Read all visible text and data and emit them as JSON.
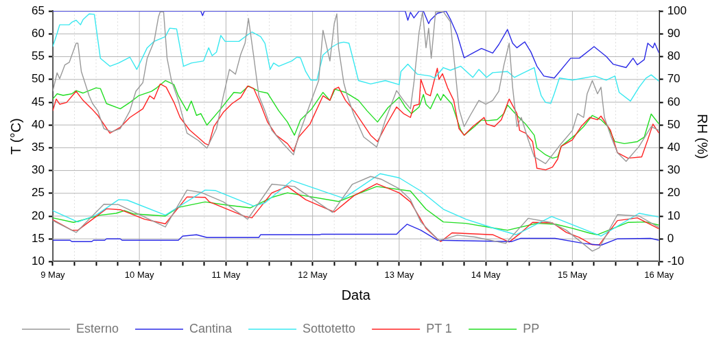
{
  "chart_data": {
    "type": "line",
    "xlabel": "Data",
    "ylabel": "T (°C)",
    "y2label": "RH (%)",
    "xlim": [
      "--05-09",
      "--05-16"
    ],
    "xticks": [
      {
        "value": "--05-09",
        "label": "9 May"
      },
      {
        "value": "--05-09T06:00",
        "label": null
      },
      {
        "value": "--05-09T12:00",
        "label": null
      },
      {
        "value": "--05-09T18:00",
        "label": null
      },
      {
        "value": "--05-10",
        "label": "10 May"
      },
      {
        "value": "--05-10T06:00",
        "label": null
      },
      {
        "value": "--05-10T12:00",
        "label": null
      },
      {
        "value": "--05-10T18:00",
        "label": null
      },
      {
        "value": "--05-11",
        "label": "11 May"
      },
      {
        "value": "--05-11T06:00",
        "label": null
      },
      {
        "value": "--05-11T12:00",
        "label": null
      },
      {
        "value": "--05-11T18:00",
        "label": null
      },
      {
        "value": "--05-12",
        "label": "12 May"
      },
      {
        "value": "--05-12T06:00",
        "label": null
      },
      {
        "value": "--05-12T12:00",
        "label": null
      },
      {
        "value": "--05-12T18:00",
        "label": null
      },
      {
        "value": "--05-13",
        "label": "13 May"
      },
      {
        "value": "--05-13T06:00",
        "label": null
      },
      {
        "value": "--05-13T12:00",
        "label": null
      },
      {
        "value": "--05-13T18:00",
        "label": null
      },
      {
        "value": "--05-14",
        "label": "14 May"
      },
      {
        "value": "--05-14T06:00",
        "label": null
      },
      {
        "value": "--05-14T12:00",
        "label": null
      },
      {
        "value": "--05-14T18:00",
        "label": null
      },
      {
        "value": "--05-15",
        "label": "15 May"
      },
      {
        "value": "--05-15T06:00",
        "label": null
      },
      {
        "value": "--05-15T12:00",
        "label": null
      },
      {
        "value": "--05-15T18:00",
        "label": null
      },
      {
        "value": "--05-16",
        "label": "16 May"
      }
    ],
    "ylim": [
      10,
      65
    ],
    "yticks": [
      10,
      15,
      20,
      25,
      30,
      35,
      40,
      45,
      50,
      55,
      60,
      65
    ],
    "y2lim": [
      -10,
      100
    ],
    "y2ticks": [
      -10,
      0,
      10,
      20,
      30,
      40,
      50,
      60,
      70,
      80,
      90,
      100
    ],
    "grid": true,
    "legend": "bottom",
    "marker": "none",
    "line_style": "solid",
    "series": [
      {
        "name": "Esterno",
        "color": "#999999",
        "x": [
          "--05-09T00:00",
          "--05-09T06:29",
          "--05-09T14:10",
          "--05-09T18:14",
          "--05-10T07:12",
          "--05-10T13:12",
          "--05-10T17:02",
          "--05-10T23:17",
          "--05-11T06:00",
          "--05-11T12:43",
          "--05-11T18:58",
          "--05-12T05:31",
          "--05-12T11:02",
          "--05-12T16:05",
          "--05-12T18:58",
          "--05-13T00:00",
          "--05-13T03:07",
          "--05-13T06:00",
          "--05-13T11:02",
          "--05-13T16:05",
          "--05-13T20:53",
          "--05-14T05:31",
          "--05-14T11:46",
          "--05-14T18:00",
          "--05-14T22:19",
          "--05-15T05:31",
          "--05-15T07:26",
          "--05-15T12:29",
          "--05-15T18:29",
          "--05-16T00:00"
        ],
        "values": [
          19.0,
          16.4,
          22.6,
          22.5,
          17.6,
          25.7,
          25.2,
          23.1,
          19.3,
          27.0,
          26.5,
          20.8,
          27.0,
          28.7,
          28.1,
          26.0,
          23.6,
          18.7,
          14.6,
          15.8,
          15.4,
          14.0,
          19.5,
          18.6,
          16.9,
          12.3,
          13.0,
          20.3,
          20.0,
          17.5
        ]
      },
      {
        "name": "Cantina",
        "color": "#2a2ae6",
        "x": [
          "--05-09T00:00",
          "--05-09T04:48",
          "--05-09T05:17",
          "--05-09T10:48",
          "--05-09T11:17",
          "--05-09T14:24",
          "--05-09T14:53",
          "--05-09T18:43",
          "--05-09T19:12",
          "--05-10T10:48",
          "--05-10T12:00",
          "--05-10T15:50",
          "--05-10T18:43",
          "--05-11T09:07",
          "--05-11T09:36",
          "--05-12T01:55",
          "--05-12T02:24",
          "--05-12T23:17",
          "--05-13T00:00",
          "--05-13T02:10",
          "--05-13T06:00",
          "--05-13T10:34",
          "--05-14T07:12",
          "--05-14T09:36",
          "--05-14T19:12",
          "--05-15T03:07",
          "--05-15T07:55",
          "--05-15T12:29",
          "--05-15T21:36",
          "--05-16T00:00"
        ],
        "values": [
          14.7,
          14.7,
          14.4,
          14.4,
          14.7,
          14.7,
          15.0,
          15.0,
          14.7,
          14.7,
          15.6,
          15.9,
          15.3,
          15.3,
          15.9,
          15.9,
          16.0,
          16.0,
          16.6,
          18.2,
          16.9,
          14.7,
          14.4,
          15.1,
          15.1,
          14.0,
          13.6,
          15.0,
          15.1,
          14.7
        ]
      },
      {
        "name": "Sottotetto",
        "color": "#38e8f0",
        "x": [
          "--05-09T00:00",
          "--05-09T06:58",
          "--05-09T12:00",
          "--05-09T18:14",
          "--05-09T20:38",
          "--05-10T07:12",
          "--05-10T18:14",
          "--05-10T21:07",
          "--05-11T07:41",
          "--05-11T10:48",
          "--05-11T18:14",
          "--05-12T08:38",
          "--05-12T18:43",
          "--05-13T00:00",
          "--05-13T06:00",
          "--05-13T12:14",
          "--05-13T18:29",
          "--05-14T01:55",
          "--05-14T08:24",
          "--05-14T18:14",
          "--05-15T07:55",
          "--05-15T18:29",
          "--05-16T00:00"
        ],
        "values": [
          21.2,
          18.7,
          20.2,
          23.6,
          23.5,
          20.2,
          25.7,
          25.6,
          22.2,
          22.9,
          27.8,
          23.9,
          29.3,
          28.4,
          25.5,
          21.5,
          19.3,
          17.4,
          15.9,
          19.9,
          15.6,
          20.6,
          19.8
        ]
      },
      {
        "name": "PT 1",
        "color": "#ff2222",
        "x": [
          "--05-09T00:00",
          "--05-09T05:17",
          "--05-09T06:58",
          "--05-09T14:53",
          "--05-09T18:43",
          "--05-10T01:26",
          "--05-10T07:12",
          "--05-10T13:12",
          "--05-10T18:14",
          "--05-10T19:26",
          "--05-11T05:17",
          "--05-11T07:12",
          "--05-11T12:43",
          "--05-11T17:02",
          "--05-11T22:05",
          "--05-12T06:00",
          "--05-12T11:31",
          "--05-12T17:46",
          "--05-13T00:00",
          "--05-13T03:07",
          "--05-13T07:26",
          "--05-13T10:34",
          "--05-13T11:31",
          "--05-13T14:38",
          "--05-14T01:55",
          "--05-14T06:29",
          "--05-14T09:22",
          "--05-14T12:58",
          "--05-14T18:29",
          "--05-14T22:19",
          "--05-15T01:55",
          "--05-15T05:31",
          "--05-15T07:26",
          "--05-15T12:29",
          "--05-15T18:00",
          "--05-16T00:00"
        ],
        "values": [
          19.2,
          16.9,
          16.9,
          21.6,
          21.4,
          19.3,
          18.3,
          24.2,
          24.1,
          23.1,
          19.9,
          19.6,
          25.1,
          26.5,
          23.6,
          20.9,
          24.5,
          27.1,
          25.1,
          23.1,
          17.3,
          15.0,
          14.4,
          16.3,
          15.9,
          14.3,
          16.1,
          18.6,
          18.5,
          16.4,
          15.3,
          13.7,
          13.7,
          19.0,
          19.6,
          17.2
        ]
      },
      {
        "name": "PP",
        "color": "#22dd22",
        "x": [
          "--05-09T00:00",
          "--05-09T05:46",
          "--05-09T13:12",
          "--05-09T17:31",
          "--05-09T19:55",
          "--05-09T22:19",
          "--05-10T07:12",
          "--05-10T10:48",
          "--05-10T18:14",
          "--05-11T00:14",
          "--05-11T06:43",
          "--05-11T12:43",
          "--05-11T17:02",
          "--05-12T07:12",
          "--05-12T17:46",
          "--05-13T03:07",
          "--05-13T07:26",
          "--05-13T12:14",
          "--05-13T18:29",
          "--05-14T01:55",
          "--05-14T06:00",
          "--05-14T14:10",
          "--05-14T19:26",
          "--05-15T00:00",
          "--05-15T05:02",
          "--05-15T06:58",
          "--05-15T15:22",
          "--05-15T20:24",
          "--05-16T00:00"
        ],
        "values": [
          19.6,
          18.6,
          20.2,
          20.6,
          21.2,
          20.5,
          20.0,
          21.9,
          23.1,
          22.4,
          21.8,
          24.1,
          25.1,
          23.2,
          26.5,
          25.5,
          21.5,
          18.7,
          18.4,
          17.4,
          16.9,
          18.4,
          18.2,
          17.3,
          16.2,
          15.9,
          18.6,
          18.7,
          18.0
        ]
      },
      {
        "color": "#999999",
        "axis": "y2",
        "x": [
          "--05-09T00:00",
          "--05-09T01:12",
          "--05-09T01:55",
          "--05-09T03:22",
          "--05-09T04:34",
          "--05-09T06:29",
          "--05-09T06:58",
          "--05-09T07:55",
          "--05-09T10:05",
          "--05-09T11:02",
          "--05-09T12:29",
          "--05-09T14:10",
          "--05-09T16:19",
          "--05-09T18:43",
          "--05-09T21:22",
          "--05-09T23:02",
          "--05-10T00:58",
          "--05-10T02:10",
          "--05-10T04:05",
          "--05-10T05:17",
          "--05-10T05:46",
          "--05-10T06:43",
          "--05-10T07:41",
          "--05-10T08:53",
          "--05-10T10:48",
          "--05-10T13:12",
          "--05-10T16:19",
          "--05-10T18:43",
          "--05-10T21:22",
          "--05-10T23:17",
          "--05-11T00:58",
          "--05-11T02:38",
          "--05-11T04:05",
          "--05-11T05:17",
          "--05-11T06:14",
          "--05-11T07:41",
          "--05-11T09:07",
          "--05-11T10:48",
          "--05-11T12:43",
          "--05-11T15:50",
          "--05-11T18:43",
          "--05-11T20:10",
          "--05-11T23:17",
          "--05-12T01:41",
          "--05-12T02:53",
          "--05-12T04:48",
          "--05-12T06:00",
          "--05-12T06:43",
          "--05-12T07:12",
          "--05-12T08:38",
          "--05-12T09:36",
          "--05-12T11:31",
          "--05-12T14:10",
          "--05-12T17:46",
          "--05-12T20:10",
          "--05-12T23:17",
          "--05-13T01:12",
          "--05-13T03:07",
          "--05-13T04:05",
          "--05-13T05:31",
          "--05-13T06:29",
          "--05-13T07:26",
          "--05-13T08:10",
          "--05-13T08:53",
          "--05-13T10:05",
          "--05-13T12:14",
          "--05-13T14:10",
          "--05-13T15:22",
          "--05-13T16:34",
          "--05-13T18:00",
          "--05-13T19:41",
          "--05-13T22:05",
          "--05-14T00:00",
          "--05-14T01:55",
          "--05-14T03:36",
          "--05-14T05:02",
          "--05-14T06:29",
          "--05-14T07:26",
          "--05-14T08:38",
          "--05-14T09:50",
          "--05-14T11:46",
          "--05-14T13:26",
          "--05-14T16:34",
          "--05-14T20:53",
          "--05-15T00:00",
          "--05-15T01:26",
          "--05-15T03:07",
          "--05-15T04:05",
          "--05-15T05:31",
          "--05-15T06:58",
          "--05-15T07:55",
          "--05-15T08:53",
          "--05-15T10:34",
          "--05-15T12:29",
          "--05-15T14:53",
          "--05-15T18:29",
          "--05-15T21:50",
          "--05-16T00:00"
        ],
        "values": [
          64.8,
          72.9,
          70.3,
          76.4,
          77.5,
          85.9,
          85.9,
          73.5,
          62.8,
          59.4,
          56.2,
          48.4,
          47.0,
          48.4,
          56.2,
          64.8,
          68.6,
          79.3,
          86.7,
          97.4,
          99.7,
          99.7,
          79.3,
          69.5,
          60.8,
          46.4,
          43.2,
          39.8,
          48.4,
          62.8,
          74.4,
          72.3,
          81.0,
          85.9,
          96.8,
          80.1,
          62.8,
          56.2,
          47.6,
          41.8,
          36.9,
          45.5,
          59.1,
          69.5,
          91.6,
          78.1,
          94.5,
          98.8,
          83.9,
          68.6,
          62.8,
          54.2,
          44.7,
          40.3,
          52.2,
          65.1,
          60.8,
          57.1,
          68.6,
          90.8,
          99.7,
          83.9,
          92.5,
          79.3,
          99.7,
          99.7,
          95.4,
          76.4,
          57.1,
          49.3,
          54.2,
          60.8,
          59.1,
          60.8,
          64.8,
          76.4,
          85.9,
          66.6,
          49.3,
          53.3,
          43.5,
          36.0,
          33.0,
          41.8,
          47.6,
          55.0,
          53.3,
          63.7,
          69.5,
          63.7,
          66.6,
          53.3,
          45.5,
          37.8,
          34.0,
          40.6,
          49.3,
          47.6
        ]
      },
      {
        "color": "#2a2ae6",
        "axis": "y2",
        "x": [
          "--05-09T00:00",
          "--05-10T17:02",
          "--05-10T17:31",
          "--05-10T18:00",
          "--05-13T01:41",
          "--05-13T02:24",
          "--05-13T03:07",
          "--05-13T04:05",
          "--05-13T05:31",
          "--05-13T06:43",
          "--05-13T08:10",
          "--05-13T08:38",
          "--05-13T10:34",
          "--05-13T12:58",
          "--05-13T14:10",
          "--05-13T16:05",
          "--05-13T18:00",
          "--05-13T20:24",
          "--05-13T22:48",
          "--05-14T01:55",
          "--05-14T03:36",
          "--05-14T06:00",
          "--05-14T07:26",
          "--05-14T08:38",
          "--05-14T10:48",
          "--05-14T12:29",
          "--05-14T14:10",
          "--05-14T16:05",
          "--05-14T18:58",
          "--05-14T23:31",
          "--05-15T01:55",
          "--05-15T06:00",
          "--05-15T09:22",
          "--05-15T11:17",
          "--05-15T14:53",
          "--05-15T16:48",
          "--05-15T18:00",
          "--05-15T19:55",
          "--05-15T20:53",
          "--05-15T22:19",
          "--05-15T22:48",
          "--05-16T00:00"
        ],
        "values": [
          100,
          100,
          98,
          100,
          100,
          96,
          99.5,
          97,
          100,
          100,
          94.5,
          96,
          99,
          100,
          96.5,
          89.6,
          79.5,
          81.6,
          83.6,
          81.6,
          85.3,
          91.9,
          85.9,
          83.9,
          86.5,
          82.1,
          75.8,
          71.5,
          70.6,
          79.3,
          79.3,
          84.4,
          80.1,
          76.7,
          75.2,
          79.3,
          76.4,
          78.7,
          85.9,
          83.9,
          86.0,
          81.6
        ]
      },
      {
        "color": "#38e8f0",
        "axis": "y2",
        "x": [
          "--05-09T00:00",
          "--05-09T01:12",
          "--05-09T01:55",
          "--05-09T04:34",
          "--05-09T05:17",
          "--05-09T06:29",
          "--05-09T07:41",
          "--05-09T08:24",
          "--05-09T10:05",
          "--05-09T11:31",
          "--05-09T13:12",
          "--05-09T15:50",
          "--05-09T18:14",
          "--05-09T21:22",
          "--05-09T23:17",
          "--05-10T02:10",
          "--05-10T04:05",
          "--05-10T07:12",
          "--05-10T08:24",
          "--05-10T10:19",
          "--05-10T12:14",
          "--05-10T14:24",
          "--05-10T17:46",
          "--05-10T19:12",
          "--05-10T20:10",
          "--05-10T21:22",
          "--05-10T22:34",
          "--05-10T23:46",
          "--05-11T03:36",
          "--05-11T06:00",
          "--05-11T07:12",
          "--05-11T09:36",
          "--05-11T10:48",
          "--05-11T12:14",
          "--05-11T13:12",
          "--05-11T14:38",
          "--05-11T18:14",
          "--05-11T19:41",
          "--05-11T20:38",
          "--05-11T22:05",
          "--05-11T23:31",
          "--05-12T01:12",
          "--05-12T02:53",
          "--05-12T05:31",
          "--05-12T07:12",
          "--05-12T08:38",
          "--05-12T10:05",
          "--05-12T11:02",
          "--05-12T12:43",
          "--05-12T16:05",
          "--05-12T20:10",
          "--05-13T00:00",
          "--05-13T00:29",
          "--05-13T02:24",
          "--05-13T05:02",
          "--05-13T08:38",
          "--05-13T09:50",
          "--05-13T12:14",
          "--05-13T14:10",
          "--05-13T17:02",
          "--05-13T20:24",
          "--05-13T22:05",
          "--05-14T00:14",
          "--05-14T01:55",
          "--05-14T06:00",
          "--05-14T07:55",
          "--05-14T13:26",
          "--05-14T14:10",
          "--05-14T15:22",
          "--05-14T16:34",
          "--05-14T18:00",
          "--05-14T18:58",
          "--05-14T20:24",
          "--05-15T00:00",
          "--05-15T06:14",
          "--05-15T09:22",
          "--05-15T11:46",
          "--05-15T12:58",
          "--05-15T16:05",
          "--05-15T18:29",
          "--05-15T20:24",
          "--05-15T21:50",
          "--05-16T00:00"
        ],
        "values": [
          84.4,
          90.2,
          94,
          94,
          95.1,
          96,
          94,
          96.3,
          98.8,
          98.6,
          79.3,
          75.8,
          77.2,
          79.8,
          74.4,
          83.9,
          86.7,
          88.8,
          92.5,
          92.2,
          75.8,
          77.2,
          78.1,
          83.9,
          80.4,
          82,
          89.3,
          86.7,
          86.7,
          89.6,
          90.8,
          88.8,
          85.9,
          74.4,
          77.2,
          75.8,
          78.1,
          79.8,
          79.5,
          73.5,
          69.7,
          69.7,
          80.7,
          84.4,
          85.9,
          86.4,
          85.9,
          80.1,
          69.5,
          68.0,
          69.5,
          67.7,
          73.5,
          76.7,
          72.3,
          71.5,
          70.6,
          75.2,
          74.0,
          75.8,
          70.9,
          74.4,
          70.9,
          73.0,
          73.5,
          70.9,
          75.2,
          69.5,
          62.8,
          59.9,
          59.5,
          63.7,
          70.6,
          69.7,
          71.5,
          69.7,
          71.5,
          64.3,
          60.5,
          66.6,
          70.6,
          72.0,
          69.2
        ]
      },
      {
        "color": "#ff2222",
        "axis": "y2",
        "x": [
          "--05-09T00:00",
          "--05-09T00:58",
          "--05-09T01:55",
          "--05-09T03:50",
          "--05-09T06:29",
          "--05-09T08:24",
          "--05-09T10:48",
          "--05-09T12:29",
          "--05-09T15:50",
          "--05-09T18:43",
          "--05-09T21:22",
          "--05-10T00:58",
          "--05-10T02:53",
          "--05-10T04:05",
          "--05-10T05:46",
          "--05-10T07:26",
          "--05-10T09:36",
          "--05-10T11:17",
          "--05-10T13:55",
          "--05-10T17:02",
          "--05-10T18:14",
          "--05-10T19:12",
          "--05-10T20:38",
          "--05-10T23:17",
          "--05-11T01:41",
          "--05-11T04:05",
          "--05-11T06:00",
          "--05-11T07:41",
          "--05-11T09:36",
          "--05-11T11:31",
          "--05-11T13:55",
          "--05-11T17:02",
          "--05-11T18:43",
          "--05-11T20:10",
          "--05-11T23:17",
          "--05-12T02:53",
          "--05-12T04:48",
          "--05-12T06:00",
          "--05-12T07:12",
          "--05-12T09:07",
          "--05-12T11:31",
          "--05-12T16:05",
          "--05-12T18:00",
          "--05-12T20:10",
          "--05-12T23:17",
          "--05-13T01:12",
          "--05-13T03:07",
          "--05-13T04:05",
          "--05-13T05:31",
          "--05-13T06:00",
          "--05-13T07:26",
          "--05-13T08:38",
          "--05-13T10:34",
          "--05-13T11:02",
          "--05-13T12:00",
          "--05-13T13:26",
          "--05-13T15:07",
          "--05-13T16:34",
          "--05-13T18:00",
          "--05-13T20:24",
          "--05-13T23:31",
          "--05-14T00:14",
          "--05-14T02:24",
          "--05-14T04:19",
          "--05-14T06:29",
          "--05-14T08:38",
          "--05-14T09:22",
          "--05-14T11:02",
          "--05-14T12:58",
          "--05-14T14:10",
          "--05-14T16:34",
          "--05-14T18:29",
          "--05-14T19:55",
          "--05-14T20:53",
          "--05-15T00:00",
          "--05-15T02:24",
          "--05-15T04:48",
          "--05-15T06:58",
          "--05-15T07:55",
          "--05-15T10:34",
          "--05-15T12:29",
          "--05-15T15:22",
          "--05-15T19:12",
          "--05-15T20:53",
          "--05-15T22:19",
          "--05-16T00:00"
        ],
        "values": [
          56.2,
          61.4,
          59.1,
          59.9,
          64.8,
          60.8,
          57.1,
          54.2,
          46.4,
          49.0,
          53.3,
          57.1,
          62.8,
          61.4,
          68.0,
          66.6,
          59.9,
          53.3,
          47.8,
          43.5,
          41.8,
          41.2,
          49.3,
          55.6,
          59.4,
          62.0,
          67.1,
          66.0,
          59.1,
          51.3,
          45.5,
          41.8,
          38.3,
          44.7,
          50.4,
          62.8,
          60.8,
          65.7,
          66.6,
          60.8,
          56.2,
          45.5,
          42.7,
          49.3,
          57.9,
          55.0,
          53.3,
          58.5,
          59.1,
          70.0,
          63.7,
          62.8,
          74.9,
          70.0,
          72.5,
          66.3,
          60.8,
          48.4,
          45.5,
          49.3,
          53.3,
          50.4,
          49.3,
          52.3,
          61.4,
          55.0,
          47.6,
          46.4,
          42.7,
          31.0,
          30.3,
          31.5,
          35.0,
          40.6,
          43.5,
          49.3,
          53.3,
          52.3,
          53.9,
          47.6,
          37.8,
          35.4,
          36.0,
          43.5,
          50.4,
          46.4
        ]
      },
      {
        "color": "#22dd22",
        "axis": "y2",
        "x": [
          "--05-09T00:00",
          "--05-09T01:12",
          "--05-09T02:53",
          "--05-09T05:17",
          "--05-09T06:29",
          "--05-09T08:24",
          "--05-09T12:00",
          "--05-09T13:12",
          "--05-09T14:53",
          "--05-09T18:43",
          "--05-09T21:22",
          "--05-09T23:46",
          "--05-10T03:22",
          "--05-10T04:48",
          "--05-10T07:12",
          "--05-10T09:36",
          "--05-10T10:48",
          "--05-10T13:12",
          "--05-10T14:24",
          "--05-10T15:50",
          "--05-10T17:02",
          "--05-10T18:43",
          "--05-10T22:34",
          "--05-11T02:10",
          "--05-11T04:05",
          "--05-11T06:14",
          "--05-11T09:07",
          "--05-11T11:31",
          "--05-11T14:38",
          "--05-11T17:02",
          "--05-11T18:58",
          "--05-11T20:38",
          "--05-11T23:46",
          "--05-12T02:53",
          "--05-12T04:48",
          "--05-12T06:14",
          "--05-12T09:07",
          "--05-12T12:43",
          "--05-12T15:07",
          "--05-12T18:00",
          "--05-12T20:53",
          "--05-13T00:00",
          "--05-13T01:41",
          "--05-13T03:22",
          "--05-13T05:31",
          "--05-13T06:43",
          "--05-13T07:26",
          "--05-13T08:38",
          "--05-13T10:34",
          "--05-13T11:31",
          "--05-13T12:14",
          "--05-13T14:38",
          "--05-13T16:05",
          "--05-13T17:02",
          "--05-13T18:00",
          "--05-13T20:53",
          "--05-13T22:48",
          "--05-14T00:29",
          "--05-14T03:07",
          "--05-14T05:02",
          "--05-14T06:00",
          "--05-14T08:38",
          "--05-14T11:02",
          "--05-14T13:26",
          "--05-14T14:10",
          "--05-14T16:34",
          "--05-14T18:29",
          "--05-14T19:55",
          "--05-14T20:53",
          "--05-15T00:43",
          "--05-15T03:07",
          "--05-15T05:31",
          "--05-15T07:55",
          "--05-15T09:50",
          "--05-15T11:46",
          "--05-15T14:24",
          "--05-15T18:00",
          "--05-15T19:55",
          "--05-15T21:50",
          "--05-16T00:00"
        ],
        "values": [
          61.4,
          63.7,
          63.0,
          63.7,
          65.1,
          64.0,
          66.3,
          66.0,
          59.4,
          57.1,
          59.9,
          62.8,
          64.8,
          66.3,
          69.5,
          67.7,
          62.8,
          56.2,
          60.5,
          54.2,
          55.0,
          49.9,
          57.1,
          64.3,
          64.0,
          67.1,
          64.8,
          64.0,
          56.2,
          51.3,
          45.5,
          52.2,
          57.1,
          64.3,
          60.8,
          65.7,
          64.3,
          60.8,
          56.2,
          51.3,
          57.6,
          62.2,
          57.9,
          55.0,
          57.9,
          63.4,
          59.1,
          57.1,
          63.7,
          60.8,
          63.4,
          59.1,
          52.2,
          47.8,
          45.5,
          49.3,
          52.2,
          51.9,
          52.3,
          55.0,
          58.8,
          54.2,
          50.4,
          45.5,
          39.8,
          36.9,
          35.4,
          36.0,
          40.6,
          45.5,
          49.3,
          54.2,
          52.3,
          49.3,
          42.7,
          41.8,
          42.7,
          44.7,
          54.8,
          50.4
        ]
      }
    ]
  }
}
